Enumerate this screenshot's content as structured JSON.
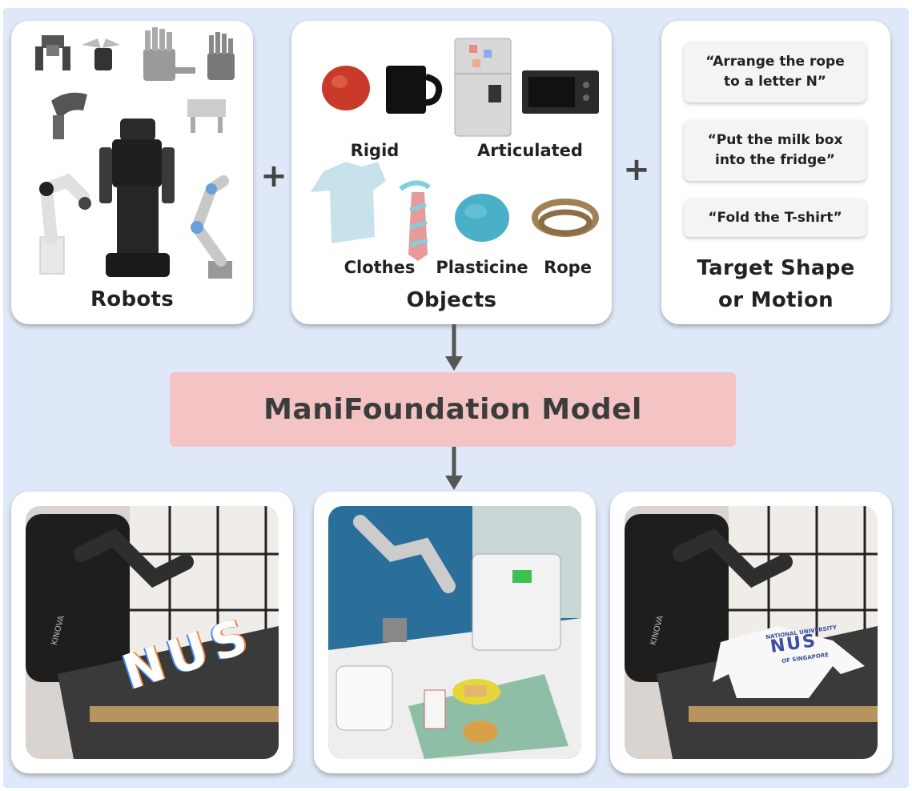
{
  "robots": {
    "title": "Robots",
    "icons": [
      "gripper-icon",
      "dexterous-hand-icon",
      "humanoid-robot-icon",
      "robot-arm-icon"
    ]
  },
  "objects": {
    "title": "Objects",
    "items": [
      {
        "label": "Rigid",
        "icons": [
          "apple-icon",
          "mug-icon"
        ]
      },
      {
        "label": "Articulated",
        "icons": [
          "fridge-icon",
          "microwave-icon"
        ]
      },
      {
        "label": "Clothes",
        "icons": [
          "shirt-icon",
          "tie-icon"
        ]
      },
      {
        "label": "Plasticine",
        "icons": [
          "plasticine-icon"
        ]
      },
      {
        "label": "Rope",
        "icons": [
          "rope-icon"
        ]
      }
    ]
  },
  "target": {
    "title_line1": "Target Shape",
    "title_line2": "or Motion",
    "instructions": [
      {
        "line1": "“Arrange the rope",
        "line2": "to a letter N”"
      },
      {
        "line1": "“Put the milk box",
        "line2": "into the fridge”"
      },
      {
        "line1": "“Fold the T-shirt”",
        "line2": ""
      }
    ]
  },
  "plus_symbol": "+",
  "model": {
    "label": "ManiFoundation Model"
  },
  "results": {
    "photo1": {
      "rope_text": "NUS",
      "robot_brand": "KINOVA"
    },
    "photo2": {
      "scene": "kitchen"
    },
    "photo3": {
      "shirt_line1": "NATIONAL UNIVERSITY",
      "shirt_big": "NUS",
      "shirt_line3": "OF SINGAPORE",
      "robot_brand": "KINOVA"
    }
  },
  "colors": {
    "background": "#dfe8f8",
    "card": "#ffffff",
    "model_box": "#f4c4c4",
    "arrow": "#555555"
  }
}
